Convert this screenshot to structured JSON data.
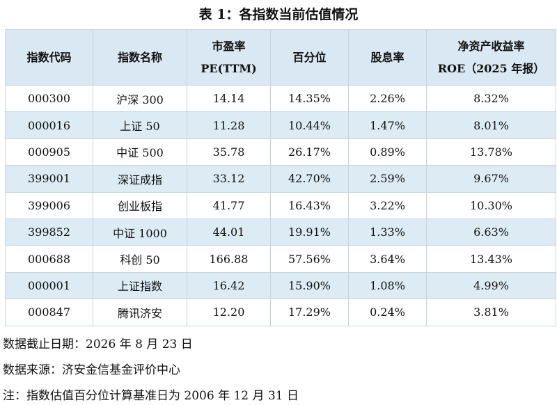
{
  "title": "表 1：各指数当前估值情况",
  "table": {
    "header": [
      [
        "指数代码"
      ],
      [
        "指数名称"
      ],
      [
        "市盈率",
        "PE(TTM)"
      ],
      [
        "百分位"
      ],
      [
        "股息率"
      ],
      [
        "净资产收益率",
        "ROE（2025 年报）"
      ]
    ],
    "rows": [
      [
        "000300",
        "沪深 300",
        "14.14",
        "14.35%",
        "2.26%",
        "8.32%"
      ],
      [
        "000016",
        "上证 50",
        "11.28",
        "10.44%",
        "1.47%",
        "8.01%"
      ],
      [
        "000905",
        "中证 500",
        "35.78",
        "26.17%",
        "0.89%",
        "13.78%"
      ],
      [
        "399001",
        "深证成指",
        "33.12",
        "42.70%",
        "2.59%",
        "9.67%"
      ],
      [
        "399006",
        "创业板指",
        "41.77",
        "16.43%",
        "3.22%",
        "10.30%"
      ],
      [
        "399852",
        "中证 1000",
        "44.01",
        "19.91%",
        "1.33%",
        "6.63%"
      ],
      [
        "000688",
        "科创 50",
        "166.88",
        "57.56%",
        "3.64%",
        "13.43%"
      ],
      [
        "000001",
        "上证指数",
        "16.42",
        "15.90%",
        "1.08%",
        "4.99%"
      ],
      [
        "000847",
        "腾讯济安",
        "12.20",
        "17.29%",
        "0.24%",
        "3.81%"
      ]
    ]
  },
  "notes": [
    "数据截止日期：2026 年 8 月 23 日",
    "数据来源：济安金信基金评价中心",
    "注：指数估值百分位计算基准日为 2006 年 12 月 31 日"
  ]
}
